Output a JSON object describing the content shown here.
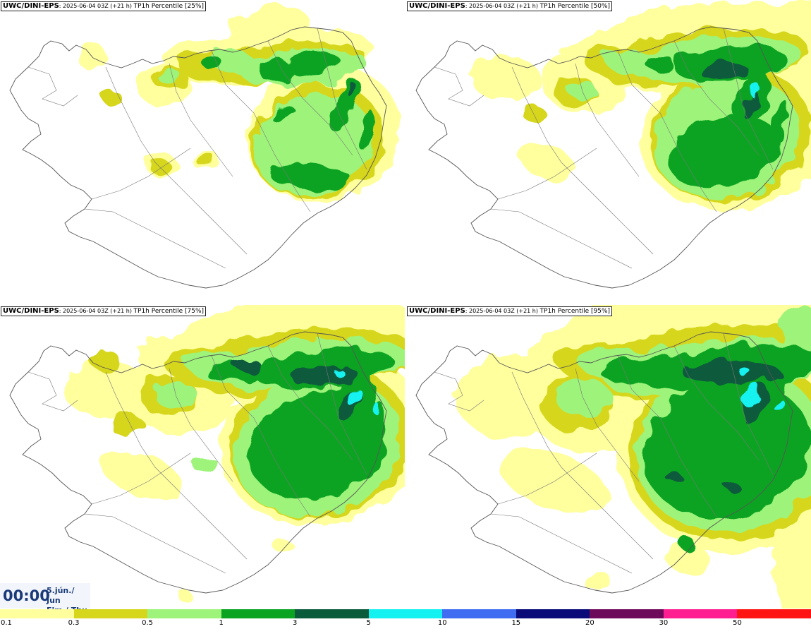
{
  "panels": [
    {
      "model": "UWC/DINI-EPS",
      "time": ": 2025-06-04 03Z (+21 h) ",
      "product": "TP1h Percentile [25%]",
      "percentile": 25
    },
    {
      "model": "UWC/DINI-EPS",
      "time": ": 2025-06-04 03Z (+21 h) ",
      "product": "TP1h Percentile [50%]",
      "percentile": 50
    },
    {
      "model": "UWC/DINI-EPS",
      "time": ": 2025-06-04 03Z (+21 h) ",
      "product": "TP1h Percentile [75%]",
      "percentile": 75
    },
    {
      "model": "UWC/DINI-EPS",
      "time": ": 2025-06-04 03Z (+21 h) ",
      "product": "TP1h Percentile [95%]",
      "percentile": 95
    }
  ],
  "valid": {
    "time": "00:00",
    "date_line1": "5.jún./ Jun",
    "date_line2": "Fim./ Thu"
  },
  "legend": {
    "ticks": [
      "0.1",
      "0.3",
      "0.5",
      "1",
      "3",
      "5",
      "10",
      "15",
      "20",
      "30",
      "50"
    ],
    "colors": [
      "#ffff9e",
      "#d6d61c",
      "#9ef47a",
      "#0aa322",
      "#0a5a3c",
      "#13f2f0",
      "#3f6cf0",
      "#0a0a78",
      "#6e0a5a",
      "#ff1f90",
      "#ff1414"
    ]
  },
  "map_colors": {
    "c01": "#ffff9e",
    "c03": "#d6d61c",
    "c05": "#9ef47a",
    "c1": "#0aa322",
    "c3": "#0a5a3c",
    "c5": "#13f2f0"
  }
}
